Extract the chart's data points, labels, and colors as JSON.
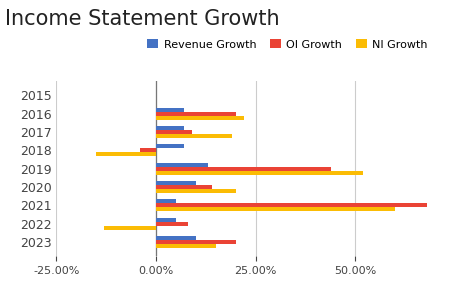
{
  "title": "Income Statement Growth",
  "years": [
    "2015",
    "2016",
    "2017",
    "2018",
    "2019",
    "2020",
    "2021",
    "2022",
    "2023"
  ],
  "revenue_growth": [
    0.0,
    0.07,
    0.07,
    0.07,
    0.13,
    0.1,
    0.05,
    0.05,
    0.1
  ],
  "oi_growth": [
    0.0,
    0.2,
    0.09,
    -0.04,
    0.44,
    0.14,
    0.68,
    0.08,
    0.2
  ],
  "ni_growth": [
    0.0,
    0.22,
    0.19,
    -0.15,
    0.52,
    0.2,
    0.6,
    -0.13,
    0.15
  ],
  "colors": {
    "revenue": "#4472C4",
    "oi": "#EA4335",
    "ni": "#FBBC04"
  },
  "legend_labels": [
    "Revenue Growth",
    "OI Growth",
    "NI Growth"
  ],
  "xlim": [
    -0.25,
    0.75
  ],
  "xtick_values": [
    -0.25,
    0.0,
    0.25,
    0.5
  ],
  "background_color": "#ffffff",
  "grid_color": "#cccccc",
  "title_fontsize": 15,
  "label_fontsize": 9,
  "tick_fontsize": 8,
  "legend_fontsize": 8,
  "bar_height": 0.22
}
